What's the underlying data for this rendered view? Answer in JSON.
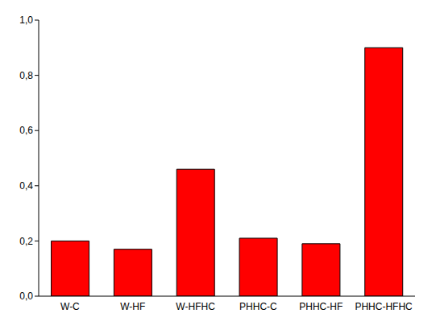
{
  "chart_data": {
    "type": "bar",
    "categories": [
      "W-C",
      "W-HF",
      "W-HFHC",
      "PHHC-C",
      "PHHC-HF",
      "PHHC-HFHC"
    ],
    "values": [
      0.2,
      0.17,
      0.46,
      0.21,
      0.19,
      0.9
    ],
    "color": "#ff0000",
    "ylim": [
      0,
      1
    ],
    "yticks": [
      {
        "value": 0,
        "label": "0,0"
      },
      {
        "value": 0.2,
        "label": "0,2"
      },
      {
        "value": 0.4,
        "label": "0,4"
      },
      {
        "value": 0.6,
        "label": "0,6"
      },
      {
        "value": 0.8,
        "label": "0,8"
      },
      {
        "value": 1,
        "label": "1,0"
      }
    ],
    "grid": false
  }
}
